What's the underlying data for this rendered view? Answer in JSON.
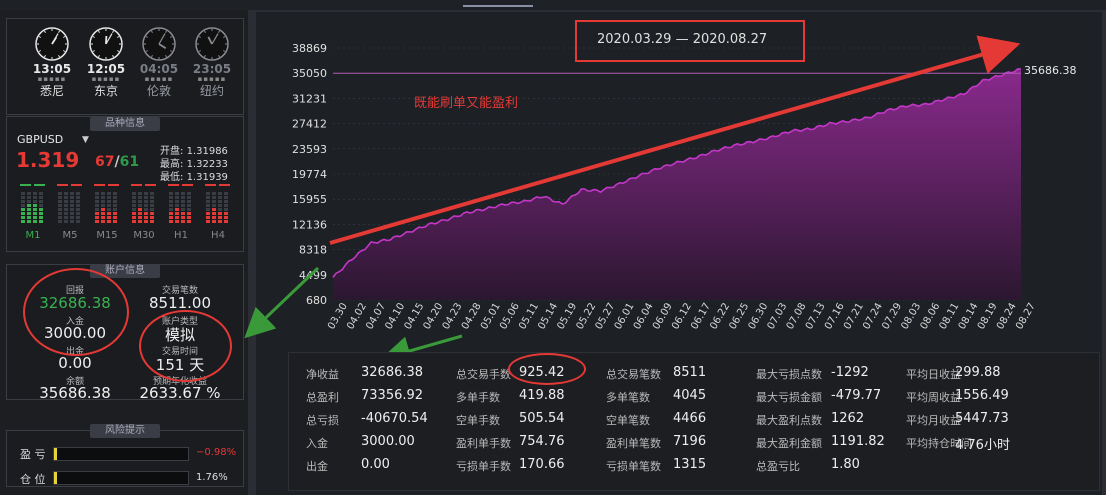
{
  "clocks": [
    {
      "time": "13:05",
      "city": "悉尼",
      "active": true
    },
    {
      "time": "12:05",
      "city": "东京",
      "active": true
    },
    {
      "time": "04:05",
      "city": "伦敦",
      "active": false
    },
    {
      "time": "23:05",
      "city": "纽约",
      "active": false
    }
  ],
  "symbol": {
    "section_title": "品种信息",
    "name": "GBPUSD",
    "dropdown_icon": "triangle-down",
    "price_big": "1.319",
    "price_bid": "67",
    "price_sep": "/",
    "price_ask": "61",
    "open_label": "开盘:",
    "open": "1.31986",
    "high_label": "最高:",
    "high": "1.32233",
    "low_label": "最低:",
    "low": "1.31939",
    "timeframes": [
      "M1",
      "M5",
      "M15",
      "M30",
      "H1",
      "H4"
    ]
  },
  "account": {
    "section_title": "账户信息",
    "return_label": "回报",
    "return_value": "32686.38",
    "deposit_label": "入金",
    "deposit_value": "3000.00",
    "withdraw_label": "出金",
    "withdraw_value": "0.00",
    "balance_label": "余额",
    "balance_value": "35686.38",
    "trades_label": "交易笔数",
    "trades_value": "8511.00",
    "type_label": "账户类型",
    "type_value": "模拟",
    "time_label": "交易时间",
    "time_value": "151 天",
    "growth_label": "预期年化收益",
    "growth_value": "2633.67 %"
  },
  "risk": {
    "section_title": "风险提示",
    "pl_label": "盈 亏",
    "pl_value": "−0.98%",
    "pl_fill": 0.01,
    "pos_label": "仓 位",
    "pos_value": "1.76%",
    "pos_fill": 0.0176
  },
  "chart": {
    "date_range": "2020.03.29 — 2020.08.27",
    "annotation": "既能刷单又能盈利",
    "last_label": "35686.38"
  },
  "chart_data": {
    "type": "area",
    "yticks": [
      "38869",
      "35050",
      "31231",
      "27412",
      "23593",
      "19774",
      "15955",
      "12136",
      "8318",
      "4499",
      "680"
    ],
    "ylim": [
      680,
      38869
    ],
    "xticks": [
      "03.30",
      "04.02",
      "04.07",
      "04.10",
      "04.15",
      "04.20",
      "04.23",
      "04.28",
      "05.01",
      "05.06",
      "05.11",
      "05.14",
      "05.19",
      "05.22",
      "05.27",
      "06.01",
      "06.04",
      "06.09",
      "06.12",
      "06.17",
      "06.22",
      "06.25",
      "06.30",
      "07.03",
      "07.08",
      "07.13",
      "07.16",
      "07.21",
      "07.24",
      "07.29",
      "08.03",
      "08.06",
      "08.11",
      "08.14",
      "08.19",
      "08.24",
      "08.27"
    ],
    "series": [
      {
        "values": [
          4100,
          6900,
          9300,
          9900,
          11000,
          12100,
          12900,
          13900,
          14500,
          15200,
          15600,
          16400,
          15200,
          17400,
          17200,
          18300,
          19500,
          20600,
          21500,
          22300,
          23300,
          24100,
          24700,
          25400,
          26300,
          26600,
          27400,
          27800,
          28300,
          29400,
          30100,
          30300,
          31100,
          31900,
          33900,
          34800,
          35686
        ]
      }
    ],
    "reference_line": 35050,
    "colors": {
      "line": "#c437c8",
      "fill_top": "#8a2a8c",
      "fill_bottom": "#2b1730",
      "grid": "#3a3d44",
      "reference": "#b05ab5"
    }
  },
  "stats": {
    "rows": [
      [
        {
          "label": "净收益",
          "value": "32686.38"
        },
        {
          "label": "总交易手数",
          "value": "925.42"
        },
        {
          "label": "总交易笔数",
          "value": "8511"
        },
        {
          "label": "最大亏损点数",
          "value": "-1292"
        },
        {
          "label": "平均日收益",
          "value": "299.88"
        }
      ],
      [
        {
          "label": "总盈利",
          "value": "73356.92"
        },
        {
          "label": "多单手数",
          "value": "419.88"
        },
        {
          "label": "多单笔数",
          "value": "4045"
        },
        {
          "label": "最大亏损金额",
          "value": "-479.77"
        },
        {
          "label": "平均周收益",
          "value": "1556.49"
        }
      ],
      [
        {
          "label": "总亏损",
          "value": "-40670.54"
        },
        {
          "label": "空单手数",
          "value": "505.54"
        },
        {
          "label": "空单笔数",
          "value": "4466"
        },
        {
          "label": "最大盈利点数",
          "value": "1262"
        },
        {
          "label": "平均月收益",
          "value": "5447.73"
        }
      ],
      [
        {
          "label": "入金",
          "value": "3000.00"
        },
        {
          "label": "盈利单手数",
          "value": "754.76"
        },
        {
          "label": "盈利单笔数",
          "value": "7196"
        },
        {
          "label": "最大盈利金额",
          "value": "1191.82"
        },
        {
          "label": "平均持仓时间",
          "value": "4.76小时"
        }
      ],
      [
        {
          "label": "出金",
          "value": "0.00"
        },
        {
          "label": "亏损单手数",
          "value": "170.66"
        },
        {
          "label": "亏损单笔数",
          "value": "1315"
        },
        {
          "label": "总盈亏比",
          "value": "1.80"
        }
      ]
    ]
  }
}
